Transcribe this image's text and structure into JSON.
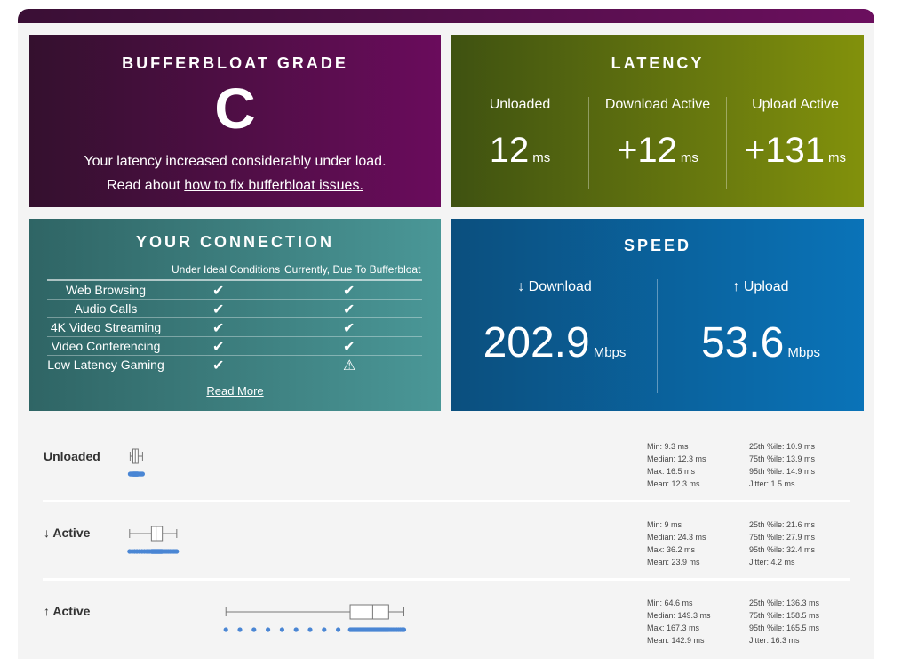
{
  "grade": {
    "title": "BUFFERBLOAT GRADE",
    "letter": "C",
    "text": "Your latency increased considerably under load.",
    "read_prefix": "Read about ",
    "link_text": "how to fix bufferbloat issues."
  },
  "latency": {
    "title": "LATENCY",
    "cols": [
      {
        "label": "Unloaded",
        "value": "12",
        "unit": "ms"
      },
      {
        "label": "Download Active",
        "value": "+12",
        "unit": "ms"
      },
      {
        "label": "Upload Active",
        "value": "+131",
        "unit": "ms"
      }
    ]
  },
  "connection": {
    "title": "YOUR CONNECTION",
    "col_ideal": "Under Ideal Conditions",
    "col_current": "Currently, Due To Bufferbloat",
    "rows": [
      {
        "name": "Web Browsing",
        "ideal": "✔",
        "current": "✔"
      },
      {
        "name": "Audio Calls",
        "ideal": "✔",
        "current": "✔"
      },
      {
        "name": "4K Video Streaming",
        "ideal": "✔",
        "current": "✔"
      },
      {
        "name": "Video Conferencing",
        "ideal": "✔",
        "current": "✔"
      },
      {
        "name": "Low Latency Gaming",
        "ideal": "✔",
        "current": "⚠"
      }
    ],
    "read_more": "Read More"
  },
  "speed": {
    "title": "SPEED",
    "download": {
      "label": "↓ Download",
      "value": "202.9",
      "unit": "Mbps"
    },
    "upload": {
      "label": "↑ Upload",
      "value": "53.6",
      "unit": "Mbps"
    }
  },
  "stats": [
    {
      "label": "Unloaded",
      "left": [
        "Min: 9.3 ms",
        "Median: 12.3 ms",
        "Max: 16.5 ms",
        "Mean: 12.3 ms"
      ],
      "right": [
        "25th %ile: 10.9 ms",
        "75th %ile: 13.9 ms",
        "95th %ile: 14.9 ms",
        "Jitter: 1.5 ms"
      ],
      "box": {
        "min": 9.3,
        "q1": 10.9,
        "median": 12.3,
        "q3": 13.9,
        "max": 16.5
      }
    },
    {
      "label": "↓ Active",
      "left": [
        "Min: 9 ms",
        "Median: 24.3 ms",
        "Max: 36.2 ms",
        "Mean: 23.9 ms"
      ],
      "right": [
        "25th %ile: 21.6 ms",
        "75th %ile: 27.9 ms",
        "95th %ile: 32.4 ms",
        "Jitter: 4.2 ms"
      ],
      "box": {
        "min": 9,
        "q1": 21.6,
        "median": 24.3,
        "q3": 27.9,
        "max": 36.2
      }
    },
    {
      "label": "↑ Active",
      "left": [
        "Min: 64.6 ms",
        "Median: 149.3 ms",
        "Max: 167.3 ms",
        "Mean: 142.9 ms"
      ],
      "right": [
        "25th %ile: 136.3 ms",
        "75th %ile: 158.5 ms",
        "95th %ile: 165.5 ms",
        "Jitter: 16.3 ms"
      ],
      "box": {
        "min": 64.6,
        "q1": 136.3,
        "median": 149.3,
        "q3": 158.5,
        "max": 167.3
      }
    }
  ],
  "colors": {
    "point": "#4a86d4",
    "box_stroke": "#777777"
  }
}
